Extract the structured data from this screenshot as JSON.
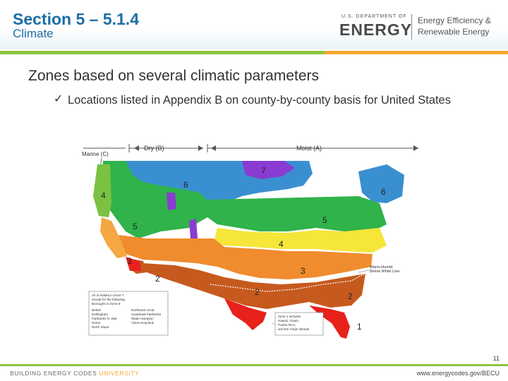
{
  "header": {
    "title": "Section 5 – 5.1.4",
    "subtitle": "Climate",
    "doe_small": "U.S. DEPARTMENT OF",
    "doe_energy": "ENERGY",
    "ee_line1": "Energy Efficiency &",
    "ee_line2": "Renewable Energy"
  },
  "content": {
    "heading": "Zones based on several climatic parameters",
    "check_icon": "✓",
    "bullet": "Locations listed in Appendix B on county-by-county basis for United States"
  },
  "map": {
    "labels": {
      "marine": "Marine (C)",
      "dry": "Dry (B)",
      "moist": "Moist (A)",
      "warm_humid_1": "Warm-Humid",
      "warm_humid_2": "Below White Line"
    },
    "zones": [
      "1",
      "2",
      "3",
      "4",
      "5",
      "6",
      "7"
    ],
    "zone_colors": {
      "z1": "#e8211c",
      "z2": "#c65a1e",
      "z3": "#f08c2e",
      "z4": "#f5e639",
      "z5": "#2fb34a",
      "z6": "#3a8fd1",
      "z7": "#8a3bd1",
      "marine4": "#7cc242",
      "marine3": "#f4a742",
      "cold": "#9ad04a"
    },
    "alaska_note": [
      "All of Alaska in Zone 7",
      "except for the following",
      "Boroughs in Zone 8:"
    ],
    "alaska_col1": [
      "Bethel",
      "Dellingham",
      "Fairbanks N. Star",
      "Nome",
      "North Slope"
    ],
    "alaska_col2": [
      "Northwest Arctic",
      "Southeast Fairbanks",
      "Wade Hampton",
      "Yukon-Koyukuk"
    ],
    "zone1_note": [
      "Zone 1 includes",
      "Hawaii, Guam,",
      "Puerto Rico,",
      "and the Virgin Islands"
    ]
  },
  "footer": {
    "page_number": "11",
    "left_prefix": "BUILDING ENERGY CODES",
    "left_uni": "UNIVERSITY",
    "right": "www.energycodes.gov/BECU"
  }
}
